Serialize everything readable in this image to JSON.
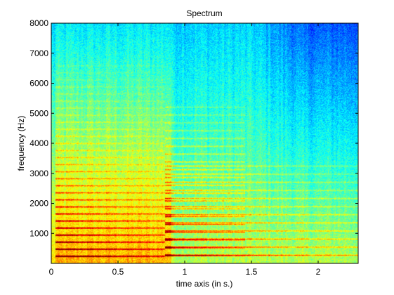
{
  "chart_data": {
    "type": "heatmap",
    "title": "Spectrum",
    "xlabel": "time axis (in s.)",
    "ylabel": "frequency (Hz)",
    "xlim": [
      0,
      2.3
    ],
    "ylim": [
      0,
      8000
    ],
    "x_ticks": [
      0,
      0.5,
      1,
      1.5,
      2
    ],
    "x_tick_labels": [
      "0",
      "0.5",
      "1",
      "1.5",
      "2"
    ],
    "y_ticks": [
      1000,
      2000,
      3000,
      4000,
      5000,
      6000,
      7000,
      8000
    ],
    "y_tick_labels": [
      "1000",
      "2000",
      "3000",
      "4000",
      "5000",
      "6000",
      "7000",
      "8000"
    ],
    "colormap": "jet",
    "grid": false,
    "note_segments": [
      {
        "start": 0.03,
        "end": 0.85,
        "fundamental_hz": 235,
        "harmonics": 28
      },
      {
        "start": 0.85,
        "end": 1.45,
        "fundamental_hz": 260,
        "harmonics": 20
      },
      {
        "start": 0.85,
        "end": 2.3,
        "fundamental_hz": 270,
        "harmonics": 12
      }
    ]
  }
}
